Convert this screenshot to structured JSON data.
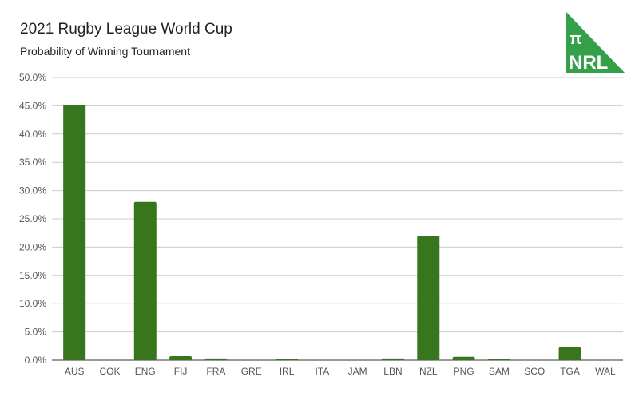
{
  "chart_data": {
    "type": "bar",
    "title": "2021 Rugby League World Cup",
    "subtitle": "Probability of Winning Tournament",
    "categories": [
      "AUS",
      "COK",
      "ENG",
      "FIJ",
      "FRA",
      "GRE",
      "IRL",
      "ITA",
      "JAM",
      "LBN",
      "NZL",
      "PNG",
      "SAM",
      "SCO",
      "TGA",
      "WAL"
    ],
    "values": [
      45.2,
      0,
      28.0,
      0.7,
      0.3,
      0,
      0.2,
      0,
      0,
      0.3,
      22.0,
      0.6,
      0.2,
      0,
      2.3,
      0
    ],
    "ylim": [
      0,
      50
    ],
    "yticks": [
      "0.0%",
      "5.0%",
      "10.0%",
      "15.0%",
      "20.0%",
      "25.0%",
      "30.0%",
      "35.0%",
      "40.0%",
      "45.0%",
      "50.0%"
    ],
    "grid": true,
    "bar_color": "#38761d",
    "legend": "none"
  },
  "logo": {
    "symbol": "π",
    "text": "NRL",
    "color": "#34a04a"
  }
}
